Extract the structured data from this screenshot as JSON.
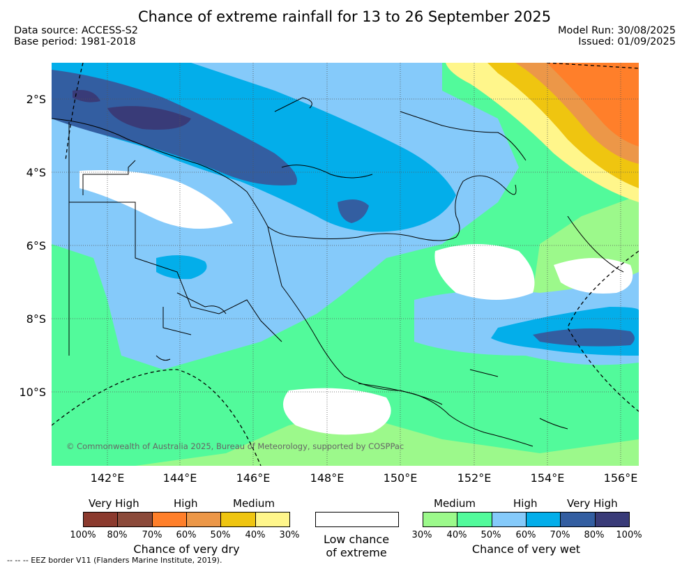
{
  "title": "Chance of extreme rainfall for 13 to 26 September 2025",
  "meta": {
    "data_source": "Data source: ACCESS-S2",
    "base_period": "Base period: 1981-2018",
    "model_run": "Model Run: 30/08/2025",
    "issued": "Issued: 01/09/2025"
  },
  "axes": {
    "y_ticks": [
      "2°S",
      "4°S",
      "6°S",
      "8°S",
      "10°S"
    ],
    "x_ticks": [
      "142°E",
      "144°E",
      "146°E",
      "148°E",
      "150°E",
      "152°E",
      "154°E",
      "156°E"
    ]
  },
  "copyright": "© Commonwealth of Australia 2025, Bureau of Meteorology, supported by COSPPac",
  "legend_dry": {
    "headers": [
      "Very High",
      "High",
      "Medium"
    ],
    "percent_labels": [
      "100%",
      "80%",
      "70%",
      "60%",
      "50%",
      "40%",
      "30%"
    ],
    "caption": "Chance of very dry",
    "colors": [
      "#8b3a2e",
      "#8b4a3a",
      "#ff7f2a",
      "#ec9748",
      "#efc510",
      "#fff68b"
    ]
  },
  "legend_neutral": {
    "line1": "Low chance",
    "line2": "of extreme",
    "color": "#ffffff"
  },
  "legend_wet": {
    "headers": [
      "Medium",
      "High",
      "Very High"
    ],
    "percent_labels": [
      "30%",
      "40%",
      "50%",
      "60%",
      "70%",
      "80%",
      "100%"
    ],
    "caption": "Chance of very wet",
    "colors": [
      "#9cf98b",
      "#52fa9b",
      "#85cafa",
      "#03aeea",
      "#335ea1",
      "#393b78"
    ]
  },
  "footnote": "--  --  -- EEZ border V11 (Flanders Marine Institute, 2019).",
  "colors": {
    "background": "#ffffff",
    "gridline": "#555555",
    "coastline": "#000000"
  }
}
